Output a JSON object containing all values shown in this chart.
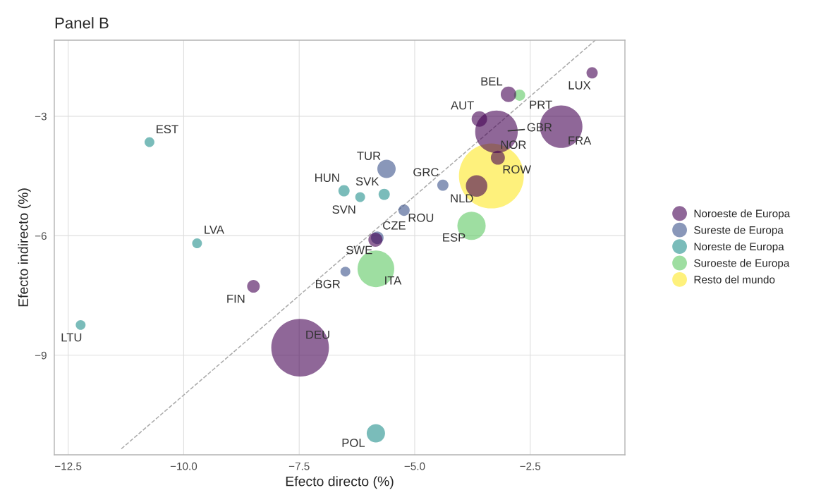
{
  "chart_data": {
    "type": "bubble",
    "title": "Panel B",
    "xlabel": "Efecto directo (%)",
    "ylabel": "Efecto indirecto (%)",
    "xlim": [
      -12.8,
      -0.45
    ],
    "ylim": [
      -11.5,
      -1.09
    ],
    "xticks": [
      {
        "value": -12.5,
        "label": "−12.5"
      },
      {
        "value": -10,
        "label": "−10.0"
      },
      {
        "value": -7.5,
        "label": "−7.5"
      },
      {
        "value": -5,
        "label": "−5.0"
      },
      {
        "value": -2.5,
        "label": "−2.5"
      }
    ],
    "yticks": [
      {
        "value": -3,
        "label": "−3"
      },
      {
        "value": -6,
        "label": "−6"
      },
      {
        "value": -9,
        "label": "−9"
      }
    ],
    "grid": true,
    "legend": "right",
    "series": [
      {
        "type": "line",
        "color": "#aaaaaa",
        "line_style": "dashed",
        "x": [
          -11.35,
          -1.09
        ],
        "values": [
          -11.35,
          -1.09
        ]
      },
      {
        "name": "Noroeste de Europa",
        "color": "#8f6798",
        "x": [
          -1.16,
          -2.97,
          -3.6,
          -3.23,
          -1.83,
          -3.2,
          -3.66,
          -5.85,
          -8.49,
          -7.48
        ],
        "values": [
          -1.91,
          -2.45,
          -3.07,
          -3.39,
          -3.26,
          -4.04,
          -4.75,
          -6.1,
          -7.27,
          -8.81
        ],
        "sizes": [
          0.03,
          0.057,
          0.057,
          0.43,
          0.43,
          0.047,
          0.11,
          0.047,
          0.038,
          0.79
        ],
        "value_labels": [
          "LUX",
          "BEL",
          "AUT",
          "GBR",
          "FRA",
          "NOR",
          "NLD",
          "SWE",
          "FIN",
          "DEU"
        ]
      },
      {
        "name": "Sureste de Europa",
        "color": "#8997b9",
        "x": [
          -4.39,
          -5.61,
          -5.23,
          -5.81,
          -6.5
        ],
        "values": [
          -4.73,
          -4.32,
          -5.36,
          -6.05,
          -6.9
        ],
        "sizes": [
          0.03,
          0.08,
          0.03,
          0.038,
          0.023
        ],
        "value_labels": [
          "GRC",
          "TUR",
          "ROU",
          "CZE",
          "BGR"
        ]
      },
      {
        "name": "Noreste de Europa",
        "color": "#7abcba",
        "x": [
          -10.74,
          -9.71,
          -12.23,
          -6.53,
          -5.66,
          -6.18,
          -5.84
        ],
        "values": [
          -3.65,
          -6.19,
          -8.24,
          -4.87,
          -4.96,
          -5.03,
          -10.96
        ],
        "sizes": [
          0.023,
          0.023,
          0.023,
          0.03,
          0.03,
          0.023,
          0.08
        ],
        "value_labels": [
          "EST",
          "LVA",
          "LTU",
          "HUN",
          "SVK",
          "SVN",
          "POL"
        ]
      },
      {
        "name": "Suroeste de Europa",
        "color": "#9edea1",
        "x": [
          -2.73,
          -3.77,
          -5.84
        ],
        "values": [
          -2.47,
          -5.75,
          -6.83
        ],
        "sizes": [
          0.03,
          0.19,
          0.32
        ],
        "value_labels": [
          "PRT",
          "ESP",
          "ITA"
        ]
      },
      {
        "name": "Resto del mundo",
        "color": "#fef17c",
        "x": [
          -3.34
        ],
        "values": [
          -4.5
        ],
        "sizes": [
          1
        ],
        "value_labels": [
          "ROW"
        ]
      }
    ]
  }
}
